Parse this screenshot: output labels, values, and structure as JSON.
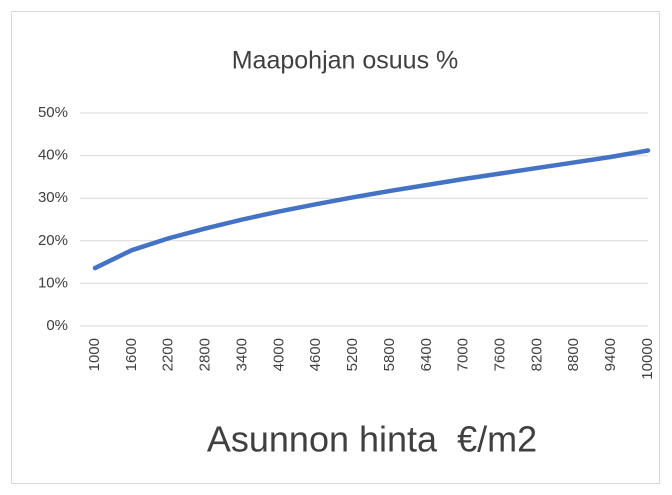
{
  "chart_data": {
    "type": "line",
    "title": "Maapohjan osuus %",
    "x_label": "Asunnon hinta  €/m2",
    "x": [
      1000,
      1600,
      2200,
      2800,
      3400,
      4000,
      4600,
      5200,
      5800,
      6400,
      7000,
      7600,
      8200,
      8800,
      9400,
      10000
    ],
    "series": [
      {
        "name": "Maapohjan osuus %",
        "color": "#4472c4",
        "values": [
          13.6,
          17.8,
          20.6,
          22.9,
          25.0,
          26.9,
          28.6,
          30.2,
          31.7,
          33.1,
          34.5,
          35.8,
          37.1,
          38.4,
          39.7,
          41.2
        ]
      }
    ],
    "xlim": [
      1000,
      10000
    ],
    "xticks": [
      1000,
      1600,
      2200,
      2800,
      3400,
      4000,
      4600,
      5200,
      5800,
      6400,
      7000,
      7600,
      8200,
      8800,
      9400,
      10000
    ],
    "ylim": [
      0,
      50
    ],
    "yticks": [
      {
        "value": 0,
        "label": "0%"
      },
      {
        "value": 10,
        "label": "10%"
      },
      {
        "value": 20,
        "label": "20%"
      },
      {
        "value": 30,
        "label": "30%"
      },
      {
        "value": 40,
        "label": "40%"
      },
      {
        "value": 50,
        "label": "50%"
      }
    ],
    "grid": true
  }
}
